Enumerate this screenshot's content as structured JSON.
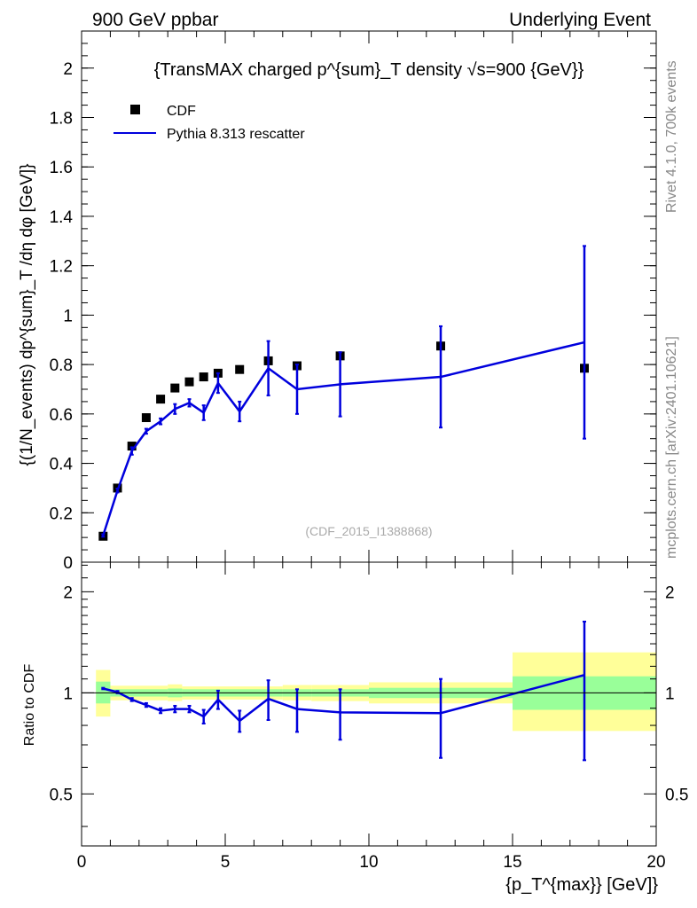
{
  "header": {
    "left": "900 GeV ppbar",
    "right": "Underlying Event"
  },
  "side_labels": {
    "rivet": "Rivet 4.1.0,  700k events",
    "mcplots": "mcplots.cern.ch [arXiv:2401.10621]"
  },
  "chart_data": [
    {
      "type": "scatter",
      "panel": "main",
      "title": "{TransMAX charged p^{sum}_T density √s=900 {GeV}}",
      "ylabel": "{(1/N_events) dp^{sum}_T /dη dφ [GeV]}",
      "xlim": [
        0,
        20
      ],
      "ylim": [
        0,
        2.15
      ],
      "yticks": [
        0,
        0.2,
        0.4,
        0.6,
        0.8,
        1,
        1.2,
        1.4,
        1.6,
        1.8,
        2
      ],
      "ytick_labels": [
        "0",
        "0.2",
        "0.4",
        "0.6",
        "0.8",
        "1",
        "1.2",
        "1.4",
        "1.6",
        "1.8",
        "2"
      ],
      "watermark": "(CDF_2015_I1388868)",
      "legend": [
        "CDF",
        "Pythia 8.313 rescatter"
      ],
      "series": [
        {
          "name": "CDF",
          "kind": "markers",
          "color": "#000000",
          "x": [
            0.75,
            1.25,
            1.75,
            2.25,
            2.75,
            3.25,
            3.75,
            4.25,
            4.75,
            5.5,
            6.5,
            7.5,
            9.0,
            12.5,
            17.5
          ],
          "y": [
            0.105,
            0.3,
            0.47,
            0.585,
            0.66,
            0.705,
            0.73,
            0.75,
            0.765,
            0.78,
            0.815,
            0.795,
            0.835,
            0.875,
            0.785
          ]
        },
        {
          "name": "Pythia 8.313 rescatter",
          "kind": "line",
          "color": "#0000dd",
          "x": [
            0.75,
            1.25,
            1.75,
            2.25,
            2.75,
            3.25,
            3.75,
            4.25,
            4.75,
            5.5,
            6.5,
            7.5,
            9.0,
            12.5,
            17.5
          ],
          "y": [
            0.108,
            0.29,
            0.45,
            0.53,
            0.57,
            0.62,
            0.645,
            0.605,
            0.725,
            0.61,
            0.785,
            0.7,
            0.72,
            0.75,
            0.89
          ],
          "err": [
            0.005,
            0.008,
            0.015,
            0.01,
            0.012,
            0.02,
            0.015,
            0.03,
            0.04,
            0.04,
            0.11,
            0.1,
            0.13,
            0.205,
            0.39
          ]
        }
      ]
    },
    {
      "type": "line",
      "panel": "ratio",
      "ylabel": "Ratio to CDF",
      "xlabel": "{p_T^{max}} [GeV]}",
      "xlim": [
        0,
        20
      ],
      "ylim": [
        0.35,
        2.45
      ],
      "xticks": [
        0,
        5,
        10,
        15,
        20
      ],
      "xtick_labels": [
        "0",
        "5",
        "10",
        "15",
        "20"
      ],
      "yticks": [
        0.5,
        1,
        2
      ],
      "ytick_labels": [
        "0.5",
        "1",
        "2"
      ],
      "reference_line": 1,
      "bands": [
        {
          "x0": 0.5,
          "x1": 1.0,
          "inner": [
            0.93,
            1.08
          ],
          "outer": [
            0.85,
            1.17
          ]
        },
        {
          "x0": 1.0,
          "x1": 3.0,
          "inner": [
            0.975,
            1.025
          ],
          "outer": [
            0.95,
            1.05
          ]
        },
        {
          "x0": 3.0,
          "x1": 3.5,
          "inner": [
            0.97,
            1.03
          ],
          "outer": [
            0.945,
            1.06
          ]
        },
        {
          "x0": 3.5,
          "x1": 7.0,
          "inner": [
            0.975,
            1.025
          ],
          "outer": [
            0.955,
            1.045
          ]
        },
        {
          "x0": 7.0,
          "x1": 8.0,
          "inner": [
            0.975,
            1.025
          ],
          "outer": [
            0.95,
            1.055
          ]
        },
        {
          "x0": 8.0,
          "x1": 10.0,
          "inner": [
            0.975,
            1.025
          ],
          "outer": [
            0.945,
            1.055
          ]
        },
        {
          "x0": 10.0,
          "x1": 15.0,
          "inner": [
            0.965,
            1.035
          ],
          "outer": [
            0.93,
            1.075
          ]
        },
        {
          "x0": 15.0,
          "x1": 20.0,
          "inner": [
            0.89,
            1.12
          ],
          "outer": [
            0.77,
            1.32
          ]
        }
      ],
      "series": [
        {
          "name": "Pythia 8.313 rescatter / CDF",
          "color": "#0000dd",
          "x": [
            0.75,
            1.25,
            1.75,
            2.25,
            2.75,
            3.25,
            3.75,
            4.25,
            4.75,
            5.5,
            6.5,
            7.5,
            9.0,
            12.5,
            17.5
          ],
          "y": [
            1.03,
            1.005,
            0.955,
            0.92,
            0.885,
            0.895,
            0.895,
            0.85,
            0.955,
            0.825,
            0.96,
            0.895,
            0.875,
            0.87,
            1.13
          ],
          "err": [
            0.005,
            0.008,
            0.01,
            0.012,
            0.015,
            0.02,
            0.02,
            0.04,
            0.06,
            0.06,
            0.13,
            0.13,
            0.15,
            0.23,
            0.5
          ]
        }
      ]
    }
  ]
}
